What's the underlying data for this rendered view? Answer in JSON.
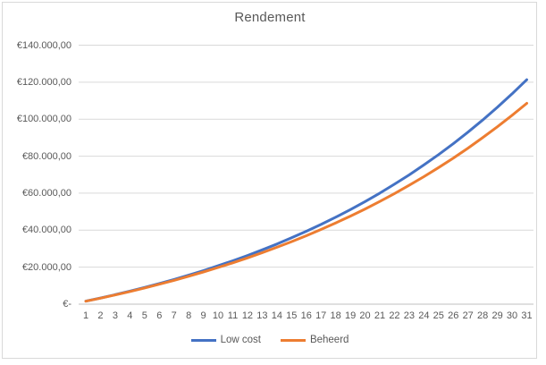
{
  "chart_data": {
    "type": "line",
    "title": "Rendement",
    "xlabel": "",
    "ylabel": "",
    "ylim": [
      0,
      140000
    ],
    "grid": true,
    "legend_position": "bottom",
    "x": [
      1,
      2,
      3,
      4,
      5,
      6,
      7,
      8,
      9,
      10,
      11,
      12,
      13,
      14,
      15,
      16,
      17,
      18,
      19,
      20,
      21,
      22,
      23,
      24,
      25,
      26,
      27,
      28,
      29,
      30,
      31
    ],
    "y_ticks": [
      {
        "value": 0,
        "label": "€-"
      },
      {
        "value": 20000,
        "label": "€20.000,00"
      },
      {
        "value": 40000,
        "label": "€40.000,00"
      },
      {
        "value": 60000,
        "label": "€60.000,00"
      },
      {
        "value": 80000,
        "label": "€80.000,00"
      },
      {
        "value": 100000,
        "label": "€100.000,00"
      },
      {
        "value": 120000,
        "label": "€120.000,00"
      },
      {
        "value": 140000,
        "label": "€140.000,00"
      }
    ],
    "series": [
      {
        "name": "Low cost",
        "color": "#4472C4",
        "values": [
          1625,
          3336,
          5138,
          7035,
          9033,
          11137,
          13352,
          15685,
          18141,
          20728,
          23451,
          26319,
          29339,
          32519,
          35867,
          39393,
          43106,
          47016,
          51133,
          55468,
          60033,
          64839,
          69901,
          75231,
          80843,
          86752,
          92975,
          99528,
          106428,
          113694,
          121344
        ]
      },
      {
        "name": "Beheerd",
        "color": "#ED7D31",
        "values": [
          1590,
          3256,
          5003,
          6833,
          8751,
          10761,
          12867,
          15075,
          17389,
          19813,
          22354,
          25017,
          27808,
          30733,
          33798,
          37010,
          40377,
          43905,
          47602,
          51477,
          55538,
          59794,
          64254,
          68928,
          73827,
          78960,
          84341,
          89979,
          95888,
          102081,
          108570
        ]
      }
    ]
  },
  "colors": {
    "gridline": "#d9d9d9",
    "axis_line": "#bfbfbf",
    "text": "#595959",
    "frame_border": "#d9d9d9"
  }
}
